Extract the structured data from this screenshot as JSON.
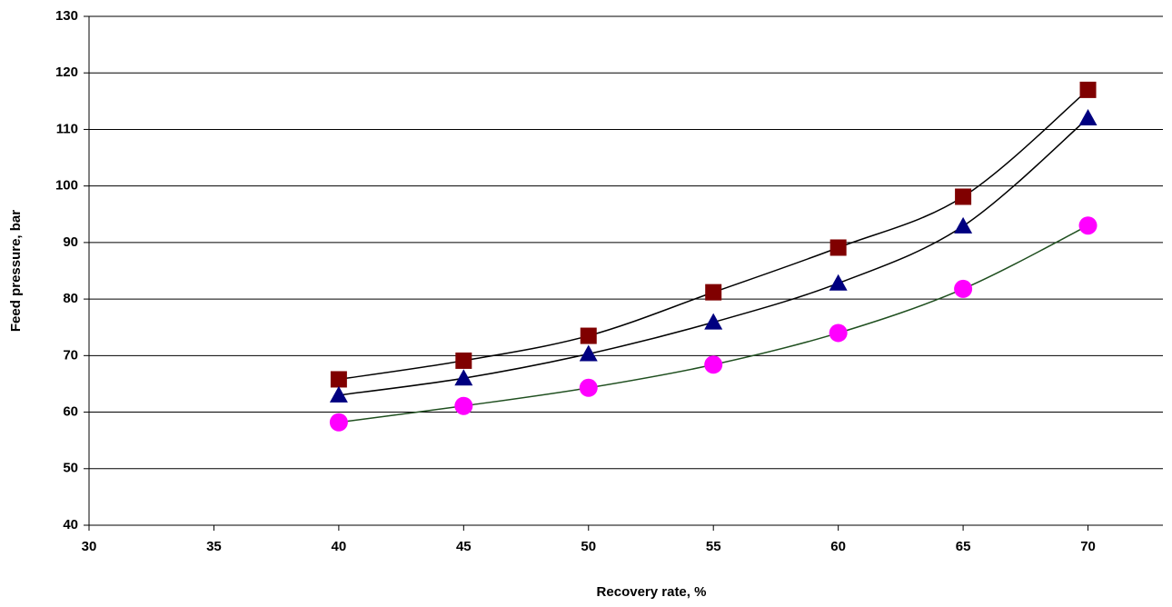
{
  "chart_data": {
    "type": "line",
    "x_label": "Recovery rate, %",
    "y_label": "Feed pressure, bar",
    "x": [
      40,
      45,
      50,
      55,
      60,
      65,
      70
    ],
    "series": [
      {
        "color": "#800000",
        "line_color": "#000000",
        "marker": "square",
        "values": [
          65.8,
          69.1,
          73.5,
          81.2,
          89.1,
          98.1,
          117
        ]
      },
      {
        "color": "#000080",
        "line_color": "#000000",
        "marker": "triangle",
        "values": [
          63,
          66,
          70.3,
          75.9,
          82.8,
          92.9,
          112
        ]
      },
      {
        "color": "#ff00ff",
        "line_color": "#1f4f1f",
        "marker": "circle",
        "values": [
          58.2,
          61.1,
          64.3,
          68.4,
          74,
          81.8,
          93
        ]
      }
    ],
    "xlim": [
      30,
      73
    ],
    "xticks": [
      30,
      35,
      40,
      45,
      50,
      55,
      60,
      65,
      70
    ],
    "ylim": [
      40,
      130
    ],
    "yticks": [
      40,
      50,
      60,
      70,
      80,
      90,
      100,
      110,
      120,
      130
    ],
    "grid": true
  }
}
